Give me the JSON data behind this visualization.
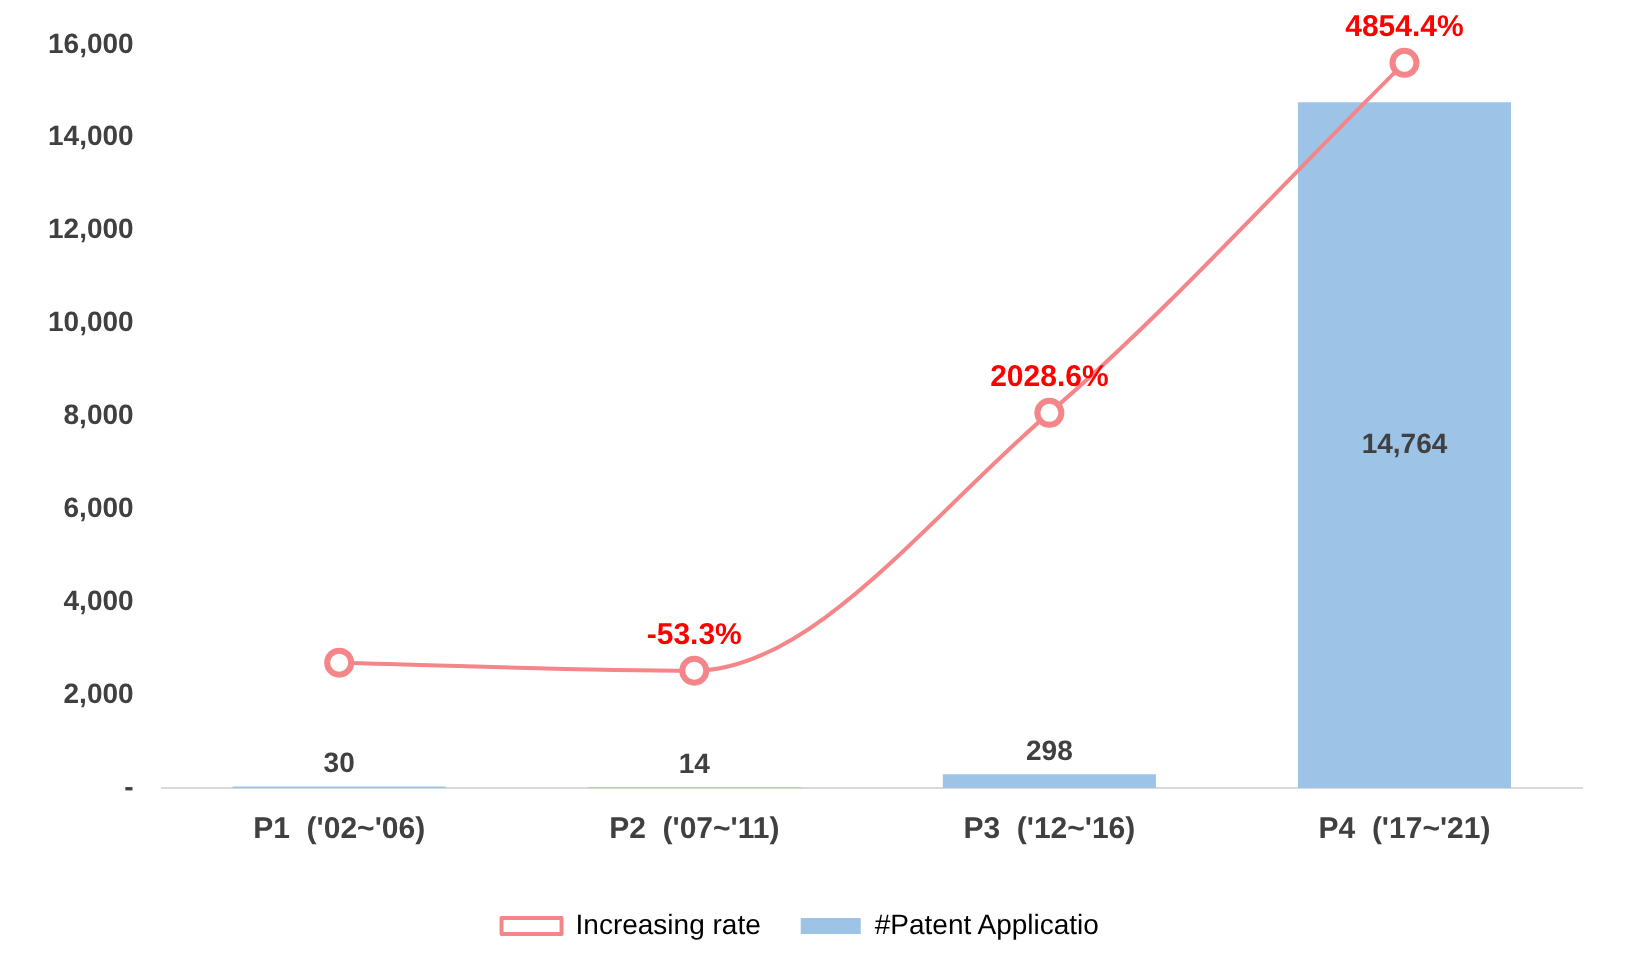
{
  "chart_data": {
    "type": "bar",
    "categories": [
      "P1  ('02~'06)",
      "P2  ('07~'11)",
      "P3  ('12~'16)",
      "P4  ('17~'21)"
    ],
    "series": [
      {
        "name": "#Patent Applicatio",
        "color": "#9dc3e6",
        "values": [
          30,
          14,
          298,
          14764
        ],
        "value_labels": [
          "30",
          "14",
          "298",
          "14,764"
        ]
      },
      {
        "name": "Increasing rate",
        "type": "line",
        "axis": "y2",
        "color": "#f4868a",
        "values": [
          12,
          -53.3,
          2028.6,
          4854.4
        ],
        "value_labels": [
          null,
          "-53.3%",
          "2028.6%",
          "4854.4%"
        ]
      }
    ],
    "ylim": [
      0,
      16000
    ],
    "yticks": [
      {
        "value": 0,
        "label": "-"
      },
      {
        "value": 2000,
        "label": "2,000"
      },
      {
        "value": 4000,
        "label": "4,000"
      },
      {
        "value": 6000,
        "label": "6,000"
      },
      {
        "value": 8000,
        "label": "8,000"
      },
      {
        "value": 10000,
        "label": "10,000"
      },
      {
        "value": 12000,
        "label": "12,000"
      },
      {
        "value": 14000,
        "label": "14,000"
      },
      {
        "value": 16000,
        "label": "16,000"
      }
    ],
    "legend": "bottom",
    "marker": "circle",
    "grid": false
  }
}
